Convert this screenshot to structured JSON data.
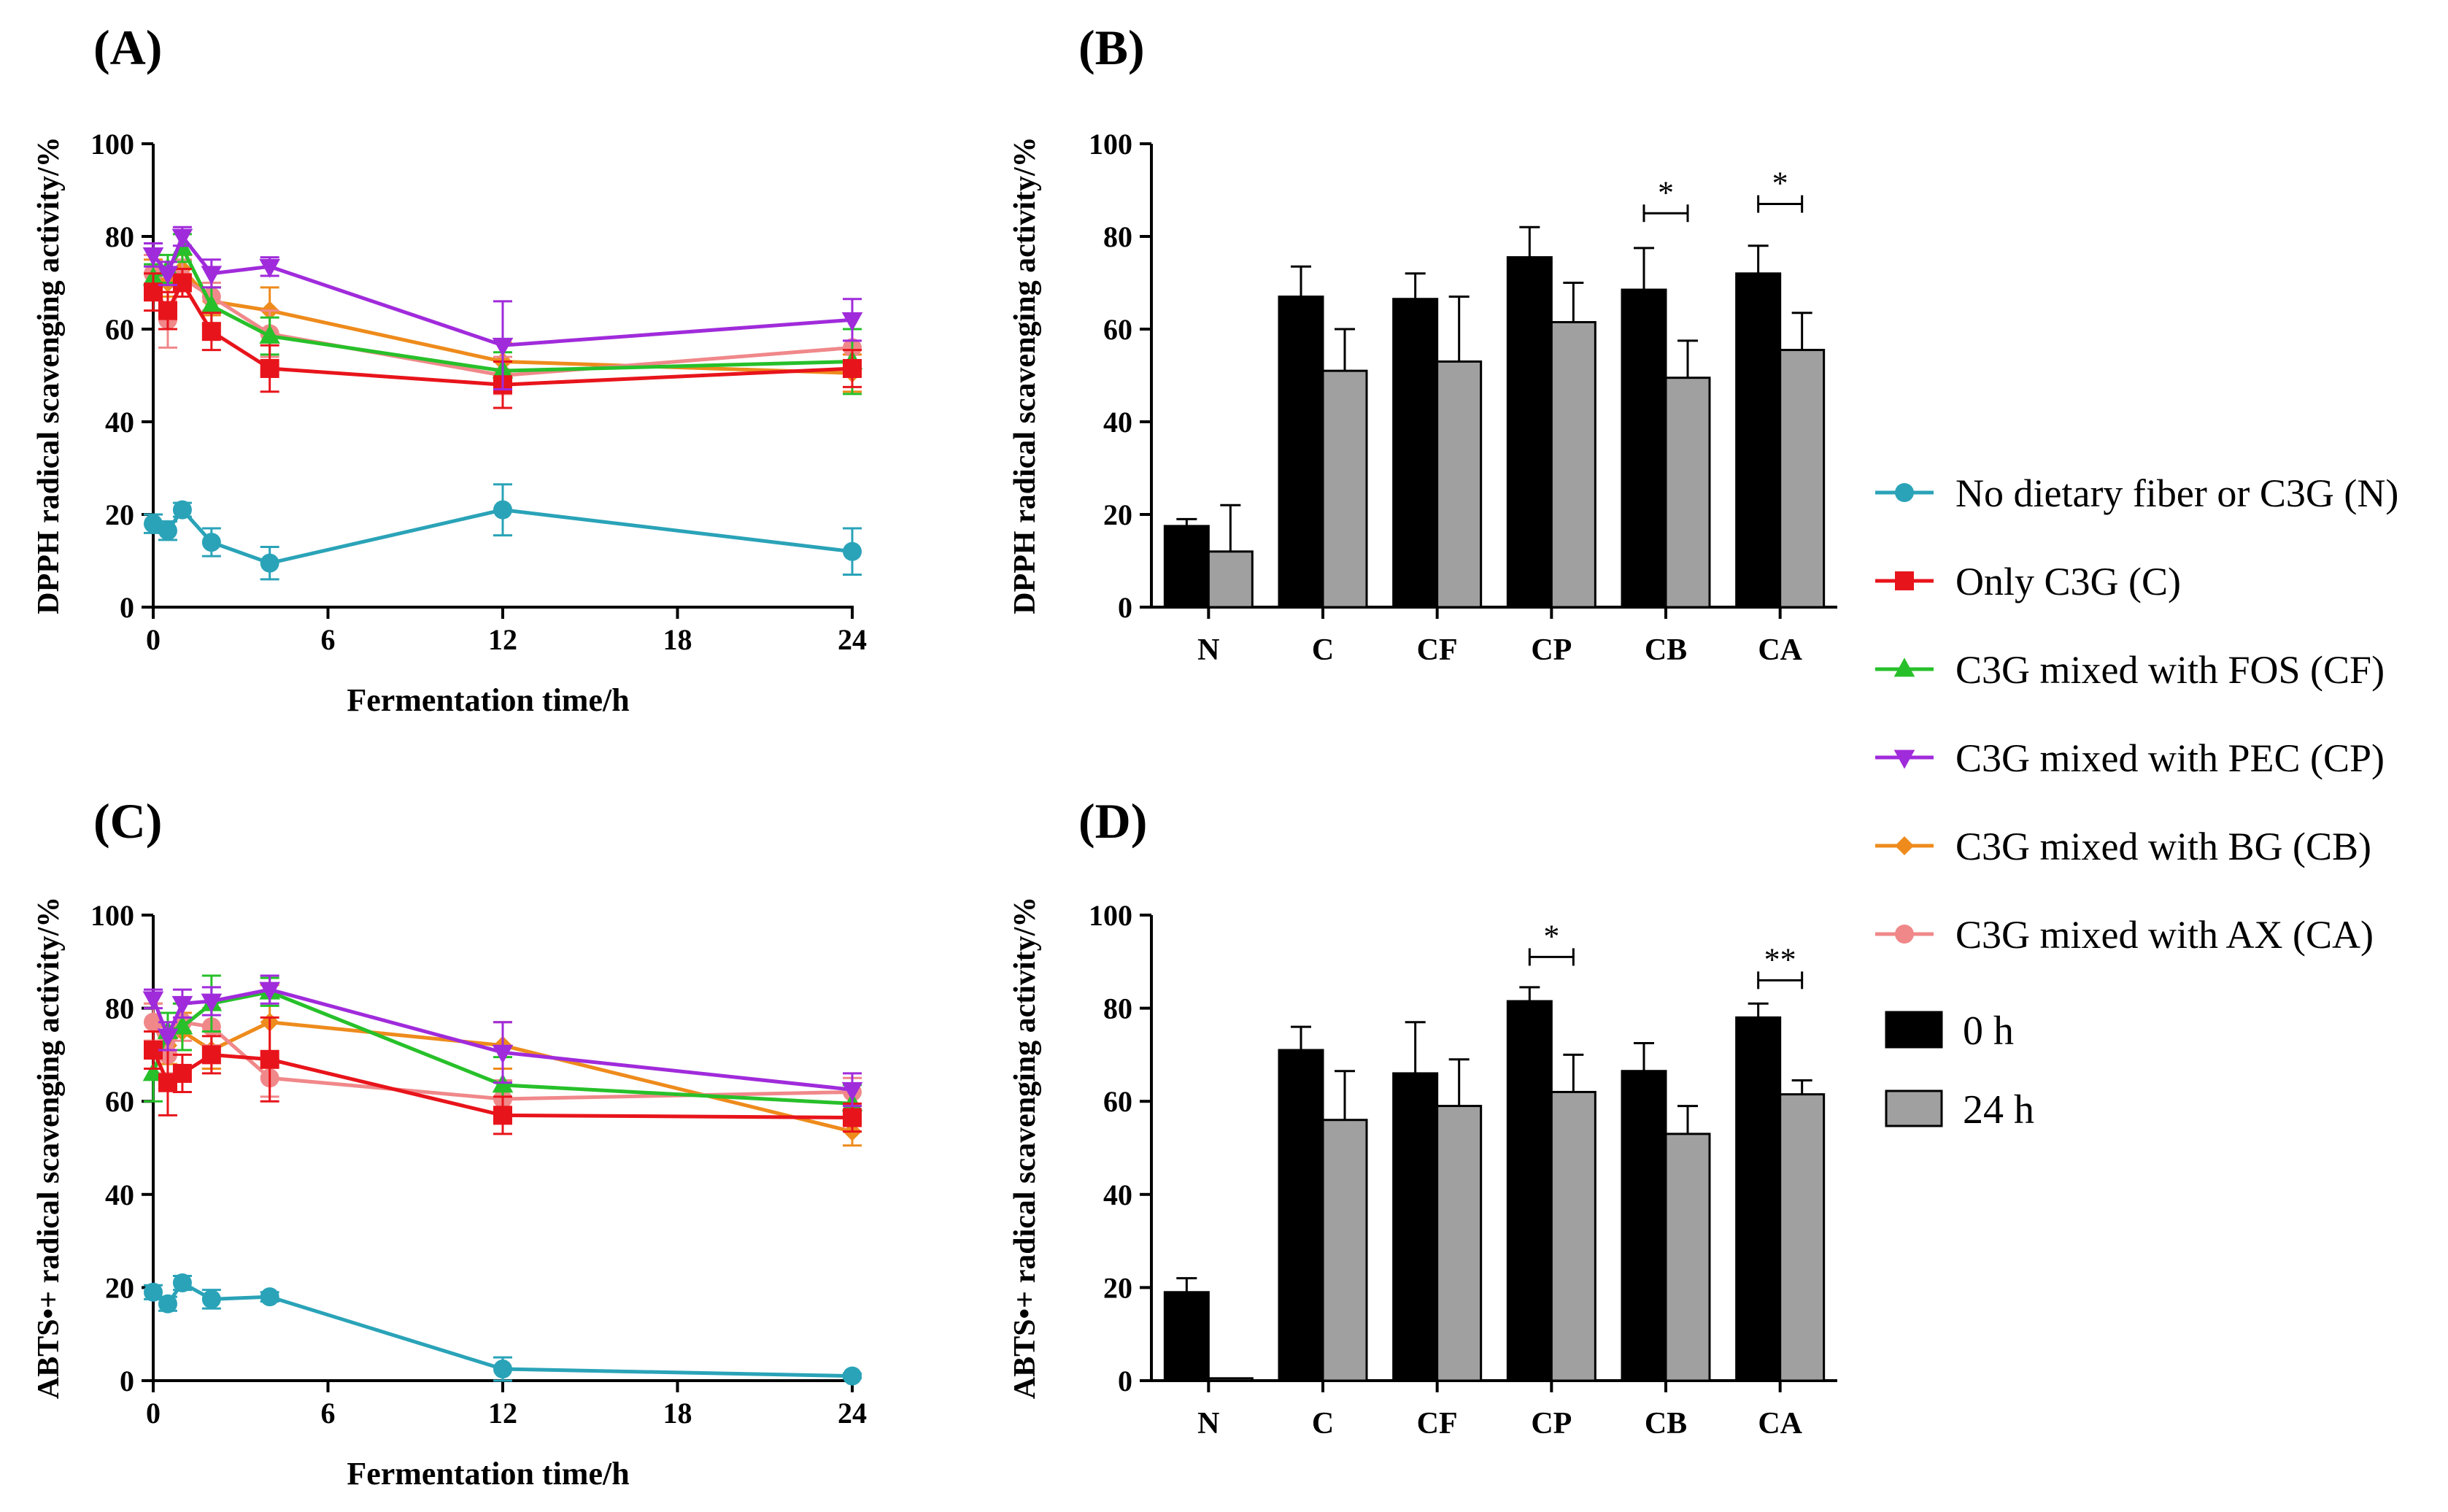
{
  "colors": {
    "N": "#2AA3B8",
    "C": "#E8141B",
    "CF": "#27C02A",
    "CP": "#A02BDB",
    "CB": "#EE8B1C",
    "CA": "#F0888A",
    "bar0": "#000000",
    "bar24": "#A0A0A0"
  },
  "legend": {
    "series": [
      {
        "key": "N",
        "label": "No dietary fiber or C3G (N)",
        "marker": "circle"
      },
      {
        "key": "C",
        "label": "Only C3G (C)",
        "marker": "square"
      },
      {
        "key": "CF",
        "label": "C3G mixed with FOS (CF)",
        "marker": "triangle-up"
      },
      {
        "key": "CP",
        "label": "C3G mixed with PEC (CP)",
        "marker": "triangle-down"
      },
      {
        "key": "CB",
        "label": "C3G mixed with BG (CB)",
        "marker": "diamond"
      },
      {
        "key": "CA",
        "label": "C3G mixed with AX (CA)",
        "marker": "circle"
      }
    ],
    "bars": [
      {
        "key": "bar0",
        "label": "0 h"
      },
      {
        "key": "bar24",
        "label": "24 h"
      }
    ]
  },
  "chart_data": [
    {
      "panel": "(A)",
      "type": "line",
      "xlabel": "Fermentation time/h",
      "ylabel": "DPPH radical scavenging activity/%",
      "xlim": [
        0,
        24
      ],
      "ylim": [
        0,
        100
      ],
      "xticks": [
        0,
        6,
        12,
        18,
        24
      ],
      "yticks": [
        0,
        20,
        40,
        60,
        80,
        100
      ],
      "x": [
        0,
        0.5,
        1,
        2,
        4,
        12,
        24
      ],
      "series": [
        {
          "key": "N",
          "values": [
            18,
            16.5,
            21,
            14,
            9.5,
            21,
            12
          ],
          "err": [
            2,
            2,
            1.5,
            3,
            3.5,
            5.5,
            5
          ]
        },
        {
          "key": "C",
          "values": [
            68,
            64,
            70,
            59.5,
            51.5,
            48,
            51.5
          ],
          "err": [
            4,
            4,
            3,
            4,
            5,
            5,
            4
          ]
        },
        {
          "key": "CF",
          "values": [
            71,
            73,
            77.5,
            65,
            58.5,
            51,
            53
          ],
          "err": [
            3,
            3,
            3,
            4,
            4,
            4,
            7
          ]
        },
        {
          "key": "CP",
          "values": [
            76,
            72,
            80,
            72,
            73.5,
            56.5,
            62
          ],
          "err": [
            2.5,
            2.5,
            2,
            3,
            2,
            9.5,
            4.5
          ]
        },
        {
          "key": "CB",
          "values": [
            72,
            70,
            73,
            66,
            64,
            53,
            50.5
          ],
          "err": [
            3,
            3,
            3,
            3,
            5,
            4,
            4
          ]
        },
        {
          "key": "CA",
          "values": [
            72,
            62,
            71,
            67,
            59,
            50,
            56
          ],
          "err": [
            4,
            6,
            4,
            3,
            5,
            4,
            4
          ]
        }
      ]
    },
    {
      "panel": "(B)",
      "type": "bar",
      "xlabel": "",
      "ylabel": "DPPH radical scavenging activity/%",
      "ylim": [
        0,
        100
      ],
      "yticks": [
        0,
        20,
        40,
        60,
        80,
        100
      ],
      "categories": [
        "N",
        "C",
        "CF",
        "CP",
        "CB",
        "CA"
      ],
      "series": [
        {
          "name": "0 h",
          "key": "bar0",
          "values": [
            17.5,
            67,
            66.5,
            75.5,
            68.5,
            72
          ],
          "err": [
            1.5,
            6.5,
            5.5,
            6.5,
            9,
            6
          ]
        },
        {
          "name": "24 h",
          "key": "bar24",
          "values": [
            12,
            51,
            53,
            61.5,
            49.5,
            55.5
          ],
          "err": [
            10,
            9,
            14,
            8.5,
            8,
            8
          ]
        }
      ],
      "significance": [
        {
          "category": "CB",
          "label": "*",
          "y": 85
        },
        {
          "category": "CA",
          "label": "*",
          "y": 87
        }
      ]
    },
    {
      "panel": "(C)",
      "type": "line",
      "xlabel": "Fermentation time/h",
      "ylabel": "ABTS•+ radical scavenging activity/%",
      "xlim": [
        0,
        24
      ],
      "ylim": [
        0,
        100
      ],
      "xticks": [
        0,
        6,
        12,
        18,
        24
      ],
      "yticks": [
        0,
        20,
        40,
        60,
        80,
        100
      ],
      "x": [
        0,
        0.5,
        1,
        2,
        4,
        12,
        24
      ],
      "series": [
        {
          "key": "N",
          "values": [
            19,
            16.5,
            21,
            17.5,
            18,
            2.5,
            1
          ],
          "err": [
            1.5,
            1.5,
            1.5,
            2,
            1,
            2.5,
            0.5
          ]
        },
        {
          "key": "C",
          "values": [
            71,
            64,
            66,
            70,
            69,
            57,
            56.5
          ],
          "err": [
            4,
            7,
            4,
            4,
            9,
            4,
            3
          ]
        },
        {
          "key": "CF",
          "values": [
            66,
            75,
            76,
            81,
            83.5,
            63.5,
            59.5
          ],
          "err": [
            6,
            4,
            5,
            6,
            3,
            6,
            4
          ]
        },
        {
          "key": "CP",
          "values": [
            82,
            74,
            81,
            81.5,
            84,
            70.5,
            62.5
          ],
          "err": [
            2,
            3,
            3,
            3,
            3,
            6.5,
            3.5
          ]
        },
        {
          "key": "CB",
          "values": [
            77,
            72,
            75,
            71,
            77,
            72,
            53.5
          ],
          "err": [
            4,
            4,
            4,
            4,
            8,
            5,
            3
          ]
        },
        {
          "key": "CA",
          "values": [
            77,
            70,
            77,
            76,
            65,
            60.5,
            62
          ],
          "err": [
            4,
            4,
            4,
            4,
            4,
            4,
            3
          ]
        }
      ]
    },
    {
      "panel": "(D)",
      "type": "bar",
      "xlabel": "",
      "ylabel": "ABTS•+ radical scavenging activity/%",
      "ylim": [
        0,
        100
      ],
      "yticks": [
        0,
        20,
        40,
        60,
        80,
        100
      ],
      "categories": [
        "N",
        "C",
        "CF",
        "CP",
        "CB",
        "CA"
      ],
      "series": [
        {
          "name": "0 h",
          "key": "bar0",
          "values": [
            19,
            71,
            66,
            81.5,
            66.5,
            78
          ],
          "err": [
            3,
            5,
            11,
            3,
            6,
            3
          ]
        },
        {
          "name": "24 h",
          "key": "bar24",
          "values": [
            0.5,
            56,
            59,
            62,
            53,
            61.5
          ],
          "err": [
            0,
            10.5,
            10,
            8,
            6,
            3
          ]
        }
      ],
      "significance": [
        {
          "category": "CP",
          "label": "*",
          "y": 91
        },
        {
          "category": "CA",
          "label": "**",
          "y": 86
        }
      ]
    }
  ]
}
